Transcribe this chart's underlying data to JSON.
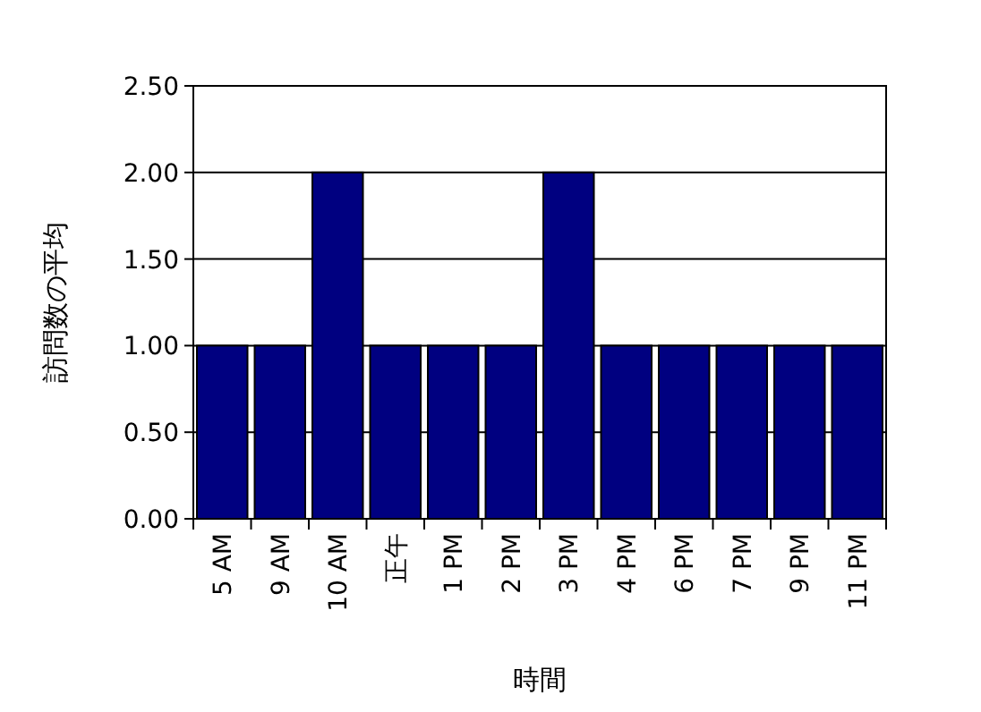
{
  "chart_data": {
    "type": "bar",
    "xlabel": "時間",
    "ylabel": "訪問数の平均",
    "categories": [
      "5 AM",
      "9 AM",
      "10 AM",
      "正午",
      "1 PM",
      "2 PM",
      "3 PM",
      "4 PM",
      "6 PM",
      "7 PM",
      "9 PM",
      "11 PM"
    ],
    "values": [
      1,
      1,
      2,
      1,
      1,
      1,
      2,
      1,
      1,
      1,
      1,
      1
    ],
    "color": "#000080",
    "ylim": [
      0,
      2.5
    ],
    "yticks": [
      {
        "value": 0,
        "label": "0.00"
      },
      {
        "value": 0.5,
        "label": "0.50"
      },
      {
        "value": 1,
        "label": "1.00"
      },
      {
        "value": 1.5,
        "label": "1.50"
      },
      {
        "value": 2,
        "label": "2.00"
      },
      {
        "value": 2.5,
        "label": "2.50"
      }
    ],
    "grid": "y"
  }
}
